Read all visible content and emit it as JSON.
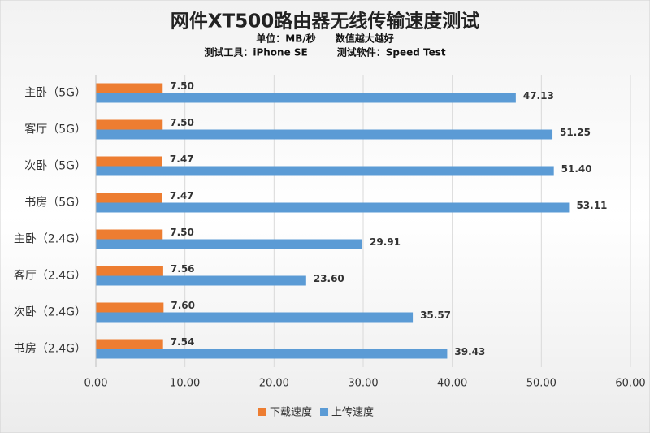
{
  "chart_data": {
    "type": "hbar",
    "title": "网件XT500路由器无线传输速度测试",
    "subtitle": [
      "单位：MB/秒　　数值越大越好",
      "测试工具：iPhone SE　　　测试软件：Speed Test"
    ],
    "categories": [
      "主卧（5G）",
      "客厅（5G）",
      "次卧（5G）",
      "书房（5G）",
      "主卧（2.4G）",
      "客厅（2.4G）",
      "次卧（2.4G）",
      "书房（2.4G）"
    ],
    "series": [
      {
        "name": "下载速度",
        "color": "#ed7d31",
        "values": [
          7.5,
          7.5,
          7.47,
          7.47,
          7.5,
          7.56,
          7.6,
          7.54
        ],
        "value_labels": [
          "7.50",
          "7.50",
          "7.47",
          "7.47",
          "7.50",
          "7.56",
          "7.60",
          "7.54"
        ]
      },
      {
        "name": "上传速度",
        "color": "#5b9bd5",
        "values": [
          47.13,
          51.25,
          51.4,
          53.11,
          29.91,
          23.6,
          35.57,
          39.43
        ],
        "value_labels": [
          "47.13",
          "51.25",
          "51.40",
          "53.11",
          "29.91",
          "23.60",
          "35.57",
          "39.43"
        ]
      }
    ],
    "xlim": [
      0,
      60
    ],
    "xticks": [
      {
        "value": 0,
        "label": "0.00"
      },
      {
        "value": 10,
        "label": "10.00"
      },
      {
        "value": 20,
        "label": "20.00"
      },
      {
        "value": 30,
        "label": "30.00"
      },
      {
        "value": 40,
        "label": "40.00"
      },
      {
        "value": 50,
        "label": "50.00"
      },
      {
        "value": 60,
        "label": "60.00"
      }
    ],
    "grid": true,
    "legend": "bottom"
  }
}
